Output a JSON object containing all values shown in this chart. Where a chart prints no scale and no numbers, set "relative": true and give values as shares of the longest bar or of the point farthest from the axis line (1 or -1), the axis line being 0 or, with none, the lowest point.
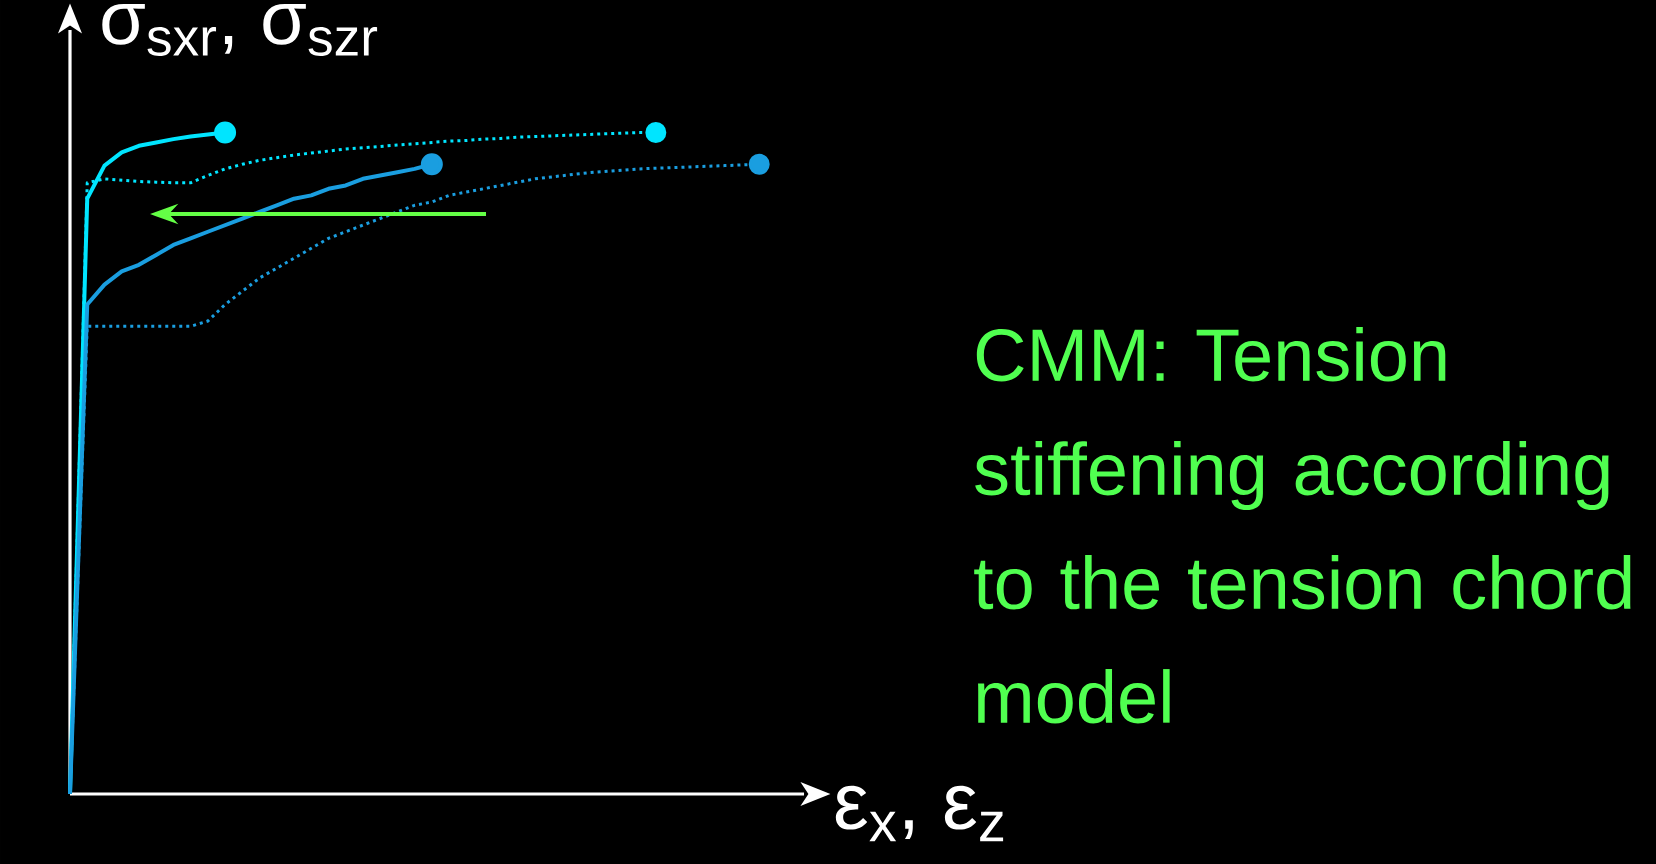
{
  "chart_data": {
    "type": "line",
    "relative": true,
    "tick_labels": false,
    "xlabel": "ε$_{x}$, ε$_{z}$",
    "ylabel": "σ$_{sxr}$, σ$_{szr}$",
    "annotations": [
      "CMM: Tension stiffening according to the tension chord model"
    ],
    "categories": [
      null,
      null,
      null,
      null,
      null,
      null,
      null,
      null,
      null,
      null,
      null,
      null,
      null,
      null,
      null,
      null,
      null,
      null,
      null,
      null,
      null,
      null,
      null,
      null,
      null,
      null,
      null,
      null,
      null,
      null,
      null,
      null,
      null,
      null,
      null,
      null,
      null,
      null,
      null,
      null,
      null
    ],
    "series": [
      {
        "color": "#00e5ff",
        "line_style": "solid",
        "values": [
          0,
          0.9,
          0.95,
          0.97,
          0.98,
          0.985,
          0.99,
          0.994,
          0.997,
          1.0,
          null,
          null,
          null,
          null,
          null,
          null,
          null,
          null,
          null,
          null,
          null,
          null,
          null,
          null,
          null,
          null,
          null,
          null,
          null,
          null,
          null,
          null,
          null,
          null,
          null,
          null,
          null,
          null,
          null,
          null,
          null
        ]
      },
      {
        "color": "#00e5ff",
        "line_style": "dotted",
        "values": [
          0,
          0.924,
          0.93,
          0.928,
          0.926,
          0.925,
          0.924,
          0.924,
          0.935,
          0.945,
          0.952,
          0.958,
          0.962,
          0.966,
          0.969,
          0.972,
          0.975,
          0.977,
          0.979,
          0.981,
          0.983,
          0.985,
          0.987,
          0.988,
          0.99,
          0.991,
          0.993,
          0.994,
          0.995,
          0.996,
          0.997,
          0.998,
          0.999,
          1.0,
          1.0,
          null,
          null,
          null,
          null,
          null,
          null
        ]
      },
      {
        "color": "#1a9ee0",
        "line_style": "solid",
        "values": [
          0,
          0.74,
          0.77,
          0.79,
          0.8,
          0.815,
          0.83,
          0.84,
          0.85,
          0.86,
          0.87,
          0.88,
          0.89,
          0.9,
          0.905,
          0.915,
          0.92,
          0.93,
          0.935,
          0.94,
          0.945,
          0.952,
          null,
          null,
          null,
          null,
          null,
          null,
          null,
          null,
          null,
          null,
          null,
          null,
          null,
          null,
          null,
          null,
          null,
          null,
          null
        ]
      },
      {
        "color": "#1a9ee0",
        "line_style": "dotted",
        "values": [
          0,
          0.707,
          0.707,
          0.707,
          0.707,
          0.707,
          0.707,
          0.707,
          0.715,
          0.74,
          0.76,
          0.78,
          0.795,
          0.81,
          0.825,
          0.84,
          0.85,
          0.86,
          0.87,
          0.88,
          0.89,
          0.895,
          0.905,
          0.91,
          0.915,
          0.92,
          0.925,
          0.93,
          0.933,
          0.936,
          0.939,
          0.941,
          0.943,
          0.945,
          0.946,
          0.947,
          0.948,
          0.949,
          0.95,
          0.951,
          0.952
        ]
      }
    ]
  }
}
